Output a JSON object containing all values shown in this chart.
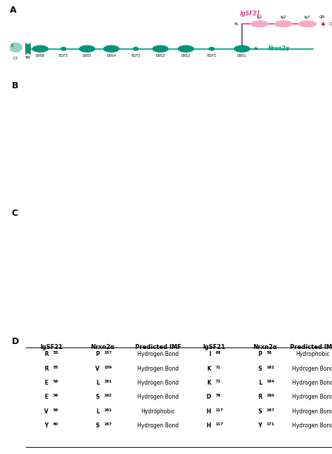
{
  "panel_labels": [
    "A",
    "B",
    "C",
    "D"
  ],
  "panel_label_fontsize": 9,
  "panel_label_fontweight": "bold",
  "nrxn2a_color": "#00957a",
  "nrxn2a_light": "#7ecfc0",
  "nrxn2a_label": "Nrxn2α",
  "nrxn2a_lns_color": "#00957a",
  "nrxn2a_egf_color": "#00957a",
  "igsf21_color": "#e8368f",
  "igsf21_light": "#f5aac8",
  "igsf21_label": "IgSF21",
  "igsf21_domains": [
    "Ig1",
    "Ig2",
    "Ig3"
  ],
  "table_left_headers": [
    "IgSF21",
    "Nrxn2α",
    "Predicted IMF"
  ],
  "table_left_rows": [
    [
      "R55",
      "P157",
      "Hydrogen Bond"
    ],
    [
      "R55",
      "V159",
      "Hydrogen Bond"
    ],
    [
      "E56",
      "L161",
      "Hydrogen Bond"
    ],
    [
      "E56",
      "S162",
      "Hydrogen Bond"
    ],
    [
      "V58",
      "L161",
      "Hydrophobic"
    ],
    [
      "Y60",
      "S167",
      "Hydrogen Bond"
    ]
  ],
  "table_right_headers": [
    "IgSF21",
    "Nrxn2α",
    "Predicted IMF"
  ],
  "table_right_rows": [
    [
      "I68",
      "P58",
      "Hydrophobic"
    ],
    [
      "K71",
      "S162",
      "Hydrogen Bond"
    ],
    [
      "K71",
      "L164",
      "Hydrogen Bond"
    ],
    [
      "D76",
      "R160",
      "Hydrogen Bond"
    ],
    [
      "H117",
      "S167",
      "Hydrogen Bond"
    ],
    [
      "H117",
      "Y171",
      "Hydrogen Bond"
    ]
  ],
  "table_left_igsf_sup": [
    "55",
    "55",
    "56",
    "56",
    "58",
    "60"
  ],
  "table_left_igsf_base": [
    "R",
    "R",
    "E",
    "E",
    "V",
    "Y"
  ],
  "table_left_nrxn_sup": [
    "157",
    "159",
    "161",
    "162",
    "161",
    "167"
  ],
  "table_left_nrxn_base": [
    "P",
    "V",
    "L",
    "S",
    "L",
    "S"
  ],
  "table_right_igsf_sup": [
    "68",
    "71",
    "71",
    "76",
    "117",
    "117"
  ],
  "table_right_igsf_base": [
    "I",
    "K",
    "K",
    "D",
    "H",
    "H"
  ],
  "table_right_nrxn_sup": [
    "58",
    "162",
    "164",
    "160",
    "167",
    "171"
  ],
  "table_right_nrxn_base": [
    "P",
    "S",
    "L",
    "R",
    "S",
    "Y"
  ],
  "background_color": "#ffffff"
}
